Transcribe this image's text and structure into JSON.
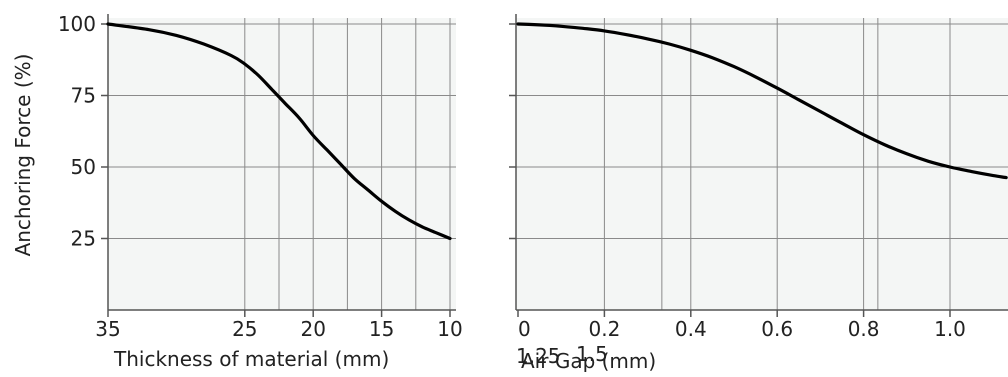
{
  "colors": {
    "plot_background": "#f4f6f5",
    "grid": "#8a8a8a",
    "curve": "#000000",
    "axis": "#555555",
    "text": "#222222"
  },
  "chart_data": [
    {
      "type": "line",
      "title": "",
      "xlabel": "Thickness of material (mm)",
      "ylabel": "Anchoring Force (%)",
      "x_reversed": true,
      "xlim": [
        35,
        10
      ],
      "ylim": [
        0,
        100
      ],
      "x_ticks": [
        35,
        25,
        20,
        15,
        10
      ],
      "x_tick_labels": [
        "35",
        "25",
        "20",
        "15",
        "10"
      ],
      "y_ticks": [
        25,
        50,
        75,
        100
      ],
      "y_tick_labels": [
        "25",
        "50",
        "75",
        "100"
      ],
      "grid": true,
      "series": [
        {
          "x": [
            35,
            32,
            30,
            28,
            26,
            25,
            24,
            23,
            22,
            21,
            20,
            19,
            18,
            17,
            16,
            15,
            14,
            13,
            12,
            11,
            10
          ],
          "y": [
            100,
            98,
            96,
            93,
            89,
            86,
            82,
            77,
            72,
            67,
            61,
            56,
            51,
            46,
            42,
            38,
            34.5,
            31.5,
            29,
            27,
            25
          ]
        }
      ]
    },
    {
      "type": "line",
      "title": "",
      "xlabel": "Air Gap (mm)",
      "ylabel": "",
      "xlim": [
        0,
        1.13
      ],
      "ylim": [
        0,
        100
      ],
      "x_ticks": [
        0,
        0.2,
        0.4,
        0.6,
        0.8,
        1.0
      ],
      "x_tick_labels": [
        "0",
        "0.2",
        "0.4",
        "0.6",
        "0.8",
        "1.0"
      ],
      "extra_x_tick_labels": [
        "1.25",
        "1.5"
      ],
      "y_ticks": [
        25,
        50,
        75,
        100
      ],
      "grid": true,
      "series": [
        {
          "x": [
            0,
            0.05,
            0.1,
            0.15,
            0.2,
            0.25,
            0.3,
            0.35,
            0.4,
            0.45,
            0.5,
            0.55,
            0.6,
            0.65,
            0.7,
            0.75,
            0.8,
            0.85,
            0.9,
            0.95,
            1.0,
            1.05,
            1.1,
            1.13
          ],
          "y": [
            100,
            99.7,
            99.2,
            98.5,
            97.6,
            96.3,
            94.8,
            93.0,
            90.8,
            88.2,
            85.1,
            81.5,
            77.6,
            73.5,
            69.4,
            65.3,
            61.3,
            57.7,
            54.6,
            52.0,
            50.0,
            48.4,
            47.0,
            46.3
          ]
        }
      ]
    }
  ]
}
